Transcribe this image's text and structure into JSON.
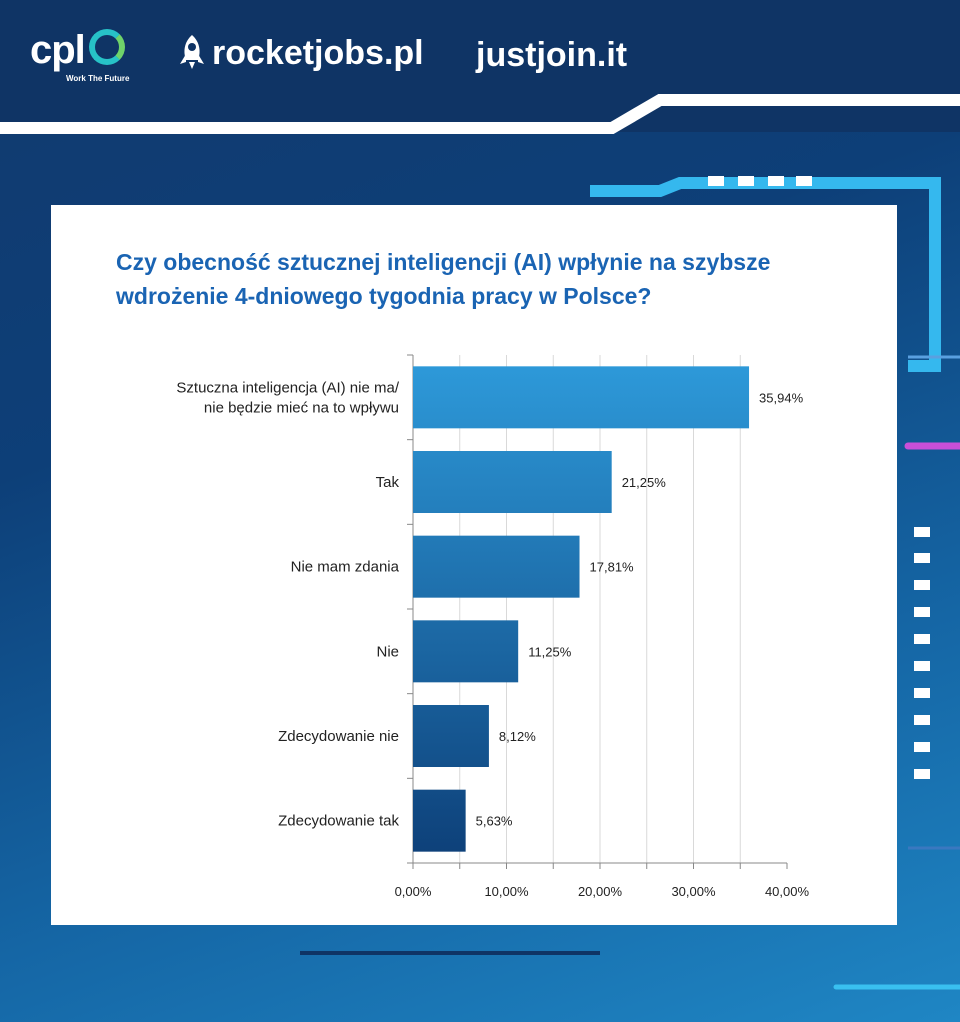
{
  "header": {
    "cpl_logo": "cpl",
    "cpl_tagline": "Work The Future",
    "rocketjobs_logo": "rocketjobs.pl",
    "justjoin_logo": "justjoin.it"
  },
  "colors": {
    "title": "#1a64b3",
    "bar_top": "#2e9bdb",
    "bar_bottom": "#0d3f78"
  },
  "chart_data": {
    "type": "bar",
    "orientation": "horizontal",
    "title": "Czy obecność sztucznej inteligencji (AI) wpłynie na szybsze wdrożenie 4-dniowego tygodnia pracy w Polsce?",
    "categories": [
      [
        "Sztuczna inteligencja (AI) nie ma/",
        "nie będzie mieć na to wpływu"
      ],
      [
        "Tak"
      ],
      [
        "Nie mam zdania"
      ],
      [
        "Nie"
      ],
      [
        "Zdecydowanie nie"
      ],
      [
        "Zdecydowanie tak"
      ]
    ],
    "values": [
      35.94,
      21.25,
      17.81,
      11.25,
      8.12,
      5.63
    ],
    "value_labels": [
      "35,94%",
      "21,25%",
      "17,81%",
      "11,25%",
      "8,12%",
      "5,63%"
    ],
    "xlim": [
      0,
      40
    ],
    "xticks": [
      0,
      10,
      20,
      30,
      40
    ],
    "xtick_labels": [
      "0,00%",
      "10,00%",
      "20,00%",
      "30,00%",
      "40,00%"
    ],
    "grid": "vertical",
    "xlabel": "",
    "ylabel": ""
  }
}
